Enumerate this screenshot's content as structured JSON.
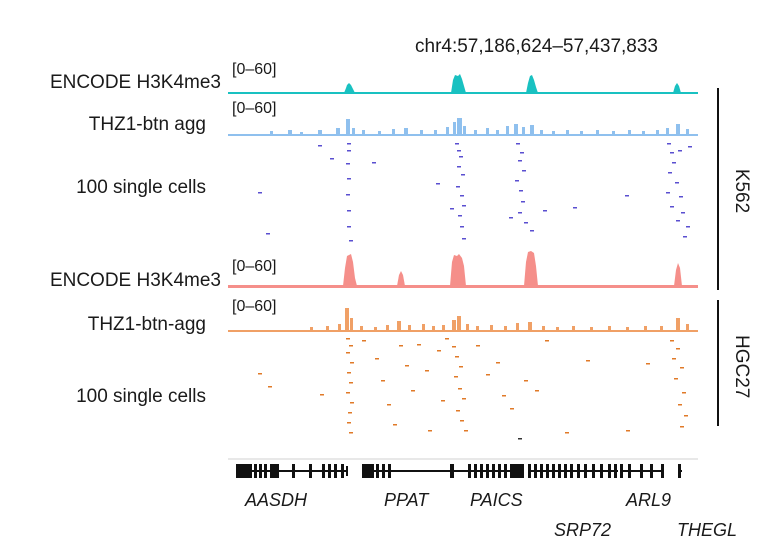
{
  "locus": "chr4:57,186,624–57,437,833",
  "colors": {
    "encode_k562": "#19c1c1",
    "agg_k562": "#8fc0ee",
    "cells_k562": "#5a4fd0",
    "encode_hgc27": "#f58f8a",
    "agg_hgc27": "#f0a066",
    "cells_hgc27": "#e07a28",
    "gene": "#111111"
  },
  "tracks": [
    {
      "id": "k562_encode",
      "label": "ENCODE H3K4me3",
      "range": "[0–60]"
    },
    {
      "id": "k562_agg",
      "label": "THZ1-btn agg",
      "range": "[0–60]"
    },
    {
      "id": "k562_cells",
      "label": "100 single cells"
    },
    {
      "id": "hgc27_encode",
      "label": "ENCODE H3K4me3",
      "range": "[0–60]"
    },
    {
      "id": "hgc27_agg",
      "label": "THZ1-btn-agg",
      "range": "[0–60]"
    },
    {
      "id": "hgc27_cells",
      "label": "100 single cells"
    }
  ],
  "cell_lines": [
    "K562",
    "HGC27"
  ],
  "genes": [
    "AASDH",
    "PPAT",
    "PAICS",
    "SRP72",
    "ARL9",
    "THEGL"
  ]
}
